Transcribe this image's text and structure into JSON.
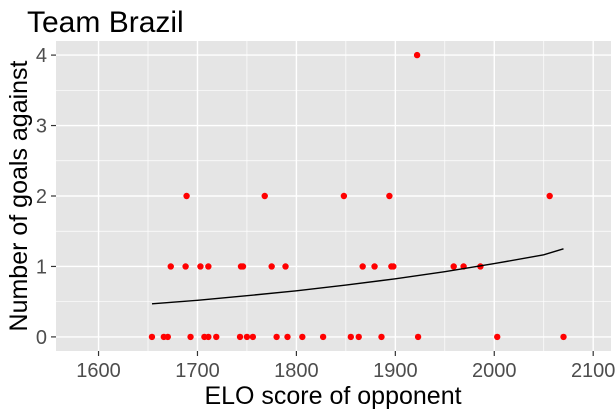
{
  "chart_data": {
    "type": "scatter",
    "title": "Team Brazil",
    "xlabel": "ELO score of opponent",
    "ylabel": "Number of goals against",
    "xlim": [
      1557,
      2118
    ],
    "ylim": [
      -0.2,
      4.2
    ],
    "x_ticks": [
      1600,
      1700,
      1800,
      1900,
      2000,
      2100
    ],
    "y_ticks": [
      0,
      1,
      2,
      3,
      4
    ],
    "x_tick_labels": [
      "1600",
      "1700",
      "1800",
      "1900",
      "2000",
      "2100"
    ],
    "y_tick_labels": [
      "0",
      "1",
      "2",
      "3",
      "4"
    ],
    "grid": true,
    "panel_color": "#e5e5e5",
    "grid_color": "#ffffff",
    "point_color": "#ff0000",
    "line_color": "#000000",
    "points": [
      {
        "x": 1654,
        "y": 0
      },
      {
        "x": 1666,
        "y": 0
      },
      {
        "x": 1670,
        "y": 0
      },
      {
        "x": 1693,
        "y": 0
      },
      {
        "x": 1707,
        "y": 0
      },
      {
        "x": 1711,
        "y": 0
      },
      {
        "x": 1719,
        "y": 0
      },
      {
        "x": 1743,
        "y": 0
      },
      {
        "x": 1750,
        "y": 0
      },
      {
        "x": 1756,
        "y": 0
      },
      {
        "x": 1780,
        "y": 0
      },
      {
        "x": 1791,
        "y": 0
      },
      {
        "x": 1806,
        "y": 0
      },
      {
        "x": 1827,
        "y": 0
      },
      {
        "x": 1855,
        "y": 0
      },
      {
        "x": 1863,
        "y": 0
      },
      {
        "x": 1886,
        "y": 0
      },
      {
        "x": 1923,
        "y": 0
      },
      {
        "x": 2003,
        "y": 0
      },
      {
        "x": 2070,
        "y": 0
      },
      {
        "x": 1673,
        "y": 1
      },
      {
        "x": 1688,
        "y": 1
      },
      {
        "x": 1703,
        "y": 1
      },
      {
        "x": 1711,
        "y": 1
      },
      {
        "x": 1744,
        "y": 1
      },
      {
        "x": 1746,
        "y": 1
      },
      {
        "x": 1775,
        "y": 1
      },
      {
        "x": 1789,
        "y": 1
      },
      {
        "x": 1867,
        "y": 1
      },
      {
        "x": 1879,
        "y": 1
      },
      {
        "x": 1896,
        "y": 1
      },
      {
        "x": 1898,
        "y": 1
      },
      {
        "x": 1959,
        "y": 1
      },
      {
        "x": 1969,
        "y": 1
      },
      {
        "x": 1986,
        "y": 1
      },
      {
        "x": 1689,
        "y": 2
      },
      {
        "x": 1768,
        "y": 2
      },
      {
        "x": 1848,
        "y": 2
      },
      {
        "x": 1894,
        "y": 2
      },
      {
        "x": 2056,
        "y": 2
      },
      {
        "x": 1922,
        "y": 4
      }
    ],
    "fit_line": [
      {
        "x": 1654,
        "y": 0.47
      },
      {
        "x": 1700,
        "y": 0.52
      },
      {
        "x": 1750,
        "y": 0.585
      },
      {
        "x": 1800,
        "y": 0.655
      },
      {
        "x": 1850,
        "y": 0.735
      },
      {
        "x": 1900,
        "y": 0.825
      },
      {
        "x": 1950,
        "y": 0.925
      },
      {
        "x": 2000,
        "y": 1.04
      },
      {
        "x": 2050,
        "y": 1.165
      },
      {
        "x": 2070,
        "y": 1.25
      }
    ]
  }
}
